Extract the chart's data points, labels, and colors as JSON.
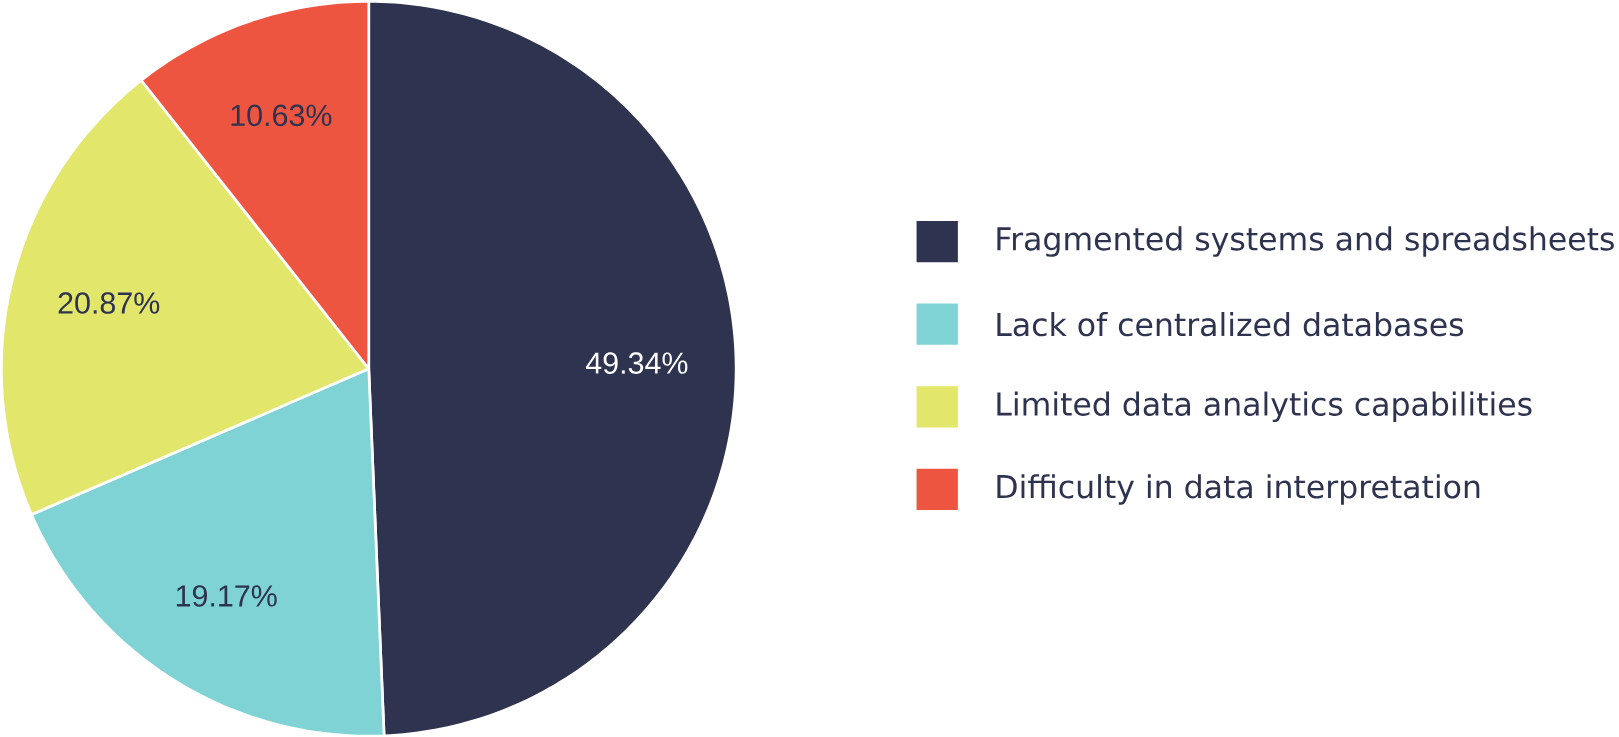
{
  "chart_data": {
    "type": "pie",
    "categories": [
      "Fragmented systems and spreadsheets",
      "Lack of centralized databases",
      "Limited data analytics capabilities",
      "Difficulty in data interpretation"
    ],
    "values": [
      49.34,
      19.17,
      20.87,
      10.63
    ],
    "colors": [
      "#2e3350",
      "#7fd3d4",
      "#e2e66a",
      "#ee5541"
    ],
    "value_labels": [
      "49.34%",
      "19.17%",
      "20.87%",
      "10.63%"
    ],
    "legend": "right"
  }
}
